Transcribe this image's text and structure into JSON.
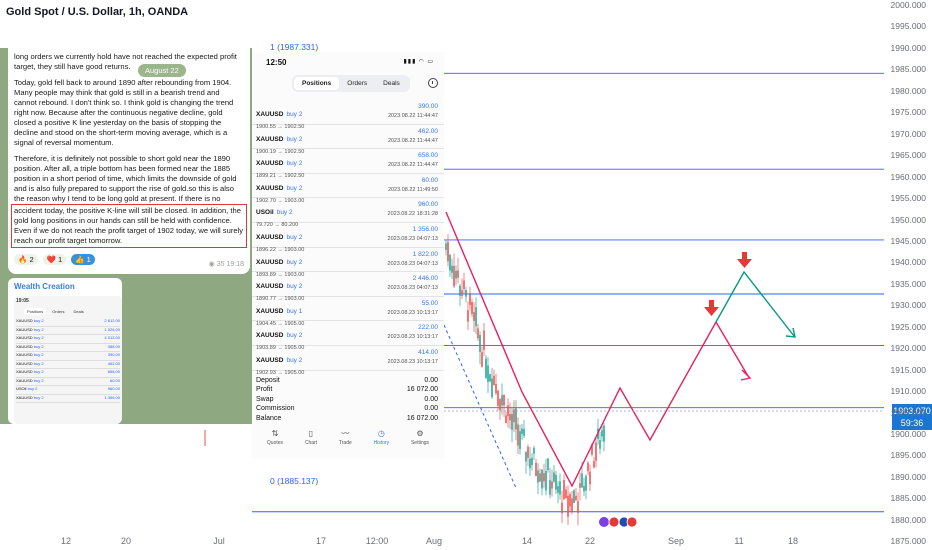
{
  "chart": {
    "title": "Gold Spot / U.S. Dollar, 1h, OANDA",
    "price_ticks": [
      "2000.000",
      "1995.000",
      "1990.000",
      "1985.000",
      "1980.000",
      "1975.000",
      "1970.000",
      "1965.000",
      "1960.000",
      "1955.000",
      "1950.000",
      "1945.000",
      "1940.000",
      "1935.000",
      "1930.000",
      "1925.000",
      "1920.000",
      "1915.000",
      "1910.000",
      "1905.000",
      "1900.000",
      "1895.000",
      "1890.000",
      "1885.000",
      "1880.000",
      "1875.000"
    ],
    "current_price": "1903.070",
    "countdown": "59:36",
    "time_ticks": [
      "12",
      "20",
      "Jul",
      "17",
      "12:00",
      "Aug",
      "14",
      "22",
      "Sep",
      "11",
      "18"
    ],
    "fib_top": "1 (1987.331)",
    "fib_bottom": "0 (1885.137)",
    "colors": {
      "up": "#26a69a",
      "down": "#ef5350",
      "fib": "#2962ff",
      "projection": "#e91e63",
      "alt_path": "#089981",
      "arrow": "#e53935"
    }
  },
  "telegram": {
    "prev_text": "long orders we currently hold have not reached the expected profit target, they still have good returns.",
    "date_badge": "August 22",
    "para1": "Today, gold fell back to around 1890 after rebounding from 1904. Many people may think that gold is still in a bearish trend and cannot rebound. I don't think so. I think gold is changing the trend right now. Because after the continuous negative decline, gold closed a positive K line yesterday on the basis of stopping the decline and stood on the short-term moving average, which is a signal of reversal momentum.",
    "para2": "Therefore, it is definitely not possible to short gold near the 1890 position. After all, a triple bottom has been formed near the 1885 position in a short period of time, which limits the downside of gold and is also fully prepared to support the rise of gold.so this is also the reason why I tend to be long gold at present. If there is no",
    "para3": "accident today, the positive K-line will still be closed. In addition, the gold long positions in our hands can still be held with confidence. Even if we do not reach the profit target of 1902 today, we will surely reach our profit target tomorrow.",
    "reactions": [
      {
        "emoji": "🔥",
        "count": "2"
      },
      {
        "emoji": "❤️",
        "count": "1"
      },
      {
        "emoji": "👍",
        "count": "1"
      }
    ],
    "views": "35",
    "time": "19:18",
    "card_title": "Wealth Creation",
    "mini": {
      "time": "19:05",
      "tabs": [
        "Positions",
        "Orders",
        "Deals"
      ],
      "rows": [
        {
          "sym": "XAUUSD",
          "side": "buy 2",
          "val": "2 612.00"
        },
        {
          "sym": "XAUUSD",
          "side": "buy 2",
          "val": "1 026.00"
        },
        {
          "sym": "XAUUSD",
          "side": "buy 2",
          "val": "4 012.00"
        },
        {
          "sym": "XAUUSD",
          "side": "buy 2",
          "val": "388.00"
        },
        {
          "sym": "XAUUSD",
          "side": "buy 2",
          "val": "390.00"
        },
        {
          "sym": "XAUUSD",
          "side": "buy 2",
          "val": "462.00"
        },
        {
          "sym": "XAUUSD",
          "side": "buy 2",
          "val": "658.00"
        },
        {
          "sym": "XAUUSD",
          "side": "buy 2",
          "val": "60.00"
        },
        {
          "sym": "USOil",
          "side": "buy 2",
          "val": "960.00"
        },
        {
          "sym": "XAUUSD",
          "side": "buy 2",
          "val": "1 356.00"
        }
      ]
    }
  },
  "phone": {
    "time": "12:50",
    "tabs": [
      "Positions",
      "Orders",
      "Deals"
    ],
    "positions": [
      {
        "sym": "XAUUSD",
        "side": "buy 2",
        "prices": "1900.55 → 1902.50",
        "value": "390.00",
        "time": "2023.08.22 11:44:47"
      },
      {
        "sym": "XAUUSD",
        "side": "buy 2",
        "prices": "1900.19 → 1902.50",
        "value": "462.00",
        "time": "2023.08.22 11:44:47"
      },
      {
        "sym": "XAUUSD",
        "side": "buy 2",
        "prices": "1899.21 → 1902.50",
        "value": "658.00",
        "time": "2023.08.22 11:44:47"
      },
      {
        "sym": "XAUUSD",
        "side": "buy 2",
        "prices": "1902.70 → 1903.00",
        "value": "60.00",
        "time": "2023.08.22 11:49:50"
      },
      {
        "sym": "USOil",
        "side": "buy 2",
        "prices": "79.720 → 80.200",
        "value": "960.00",
        "time": "2023.08.22 18:31:28"
      },
      {
        "sym": "XAUUSD",
        "side": "buy 2",
        "prices": "1896.22 → 1903.00",
        "value": "1 356.00",
        "time": "2023.08.23 04:07:13"
      },
      {
        "sym": "XAUUSD",
        "side": "buy 2",
        "prices": "1893.89 → 1903.00",
        "value": "1 822.00",
        "time": "2023.08.23 04:07:13"
      },
      {
        "sym": "XAUUSD",
        "side": "buy 2",
        "prices": "1890.77 → 1903.00",
        "value": "2 446.00",
        "time": "2023.08.23 04:07:13"
      },
      {
        "sym": "XAUUSD",
        "side": "buy 1",
        "prices": "1904.45 → 1905.00",
        "value": "55.00",
        "time": "2023.08.23 10:13:17"
      },
      {
        "sym": "XAUUSD",
        "side": "buy 2",
        "prices": "1903.89 → 1905.00",
        "value": "222.00",
        "time": "2023.08.23 10:13:17"
      },
      {
        "sym": "XAUUSD",
        "side": "buy 2",
        "prices": "1902.93 → 1905.00",
        "value": "414.00",
        "time": "2023.08.23 10:13:17"
      }
    ],
    "summary": [
      {
        "label": "Deposit",
        "value": "0.00"
      },
      {
        "label": "Profit",
        "value": "16 072.00"
      },
      {
        "label": "Swap",
        "value": "0.00"
      },
      {
        "label": "Commission",
        "value": "0.00"
      },
      {
        "label": "Balance",
        "value": "16 072.00"
      }
    ],
    "nav": [
      "Quotes",
      "Chart",
      "Trade",
      "History",
      "Settings"
    ],
    "nav_active": "History"
  }
}
